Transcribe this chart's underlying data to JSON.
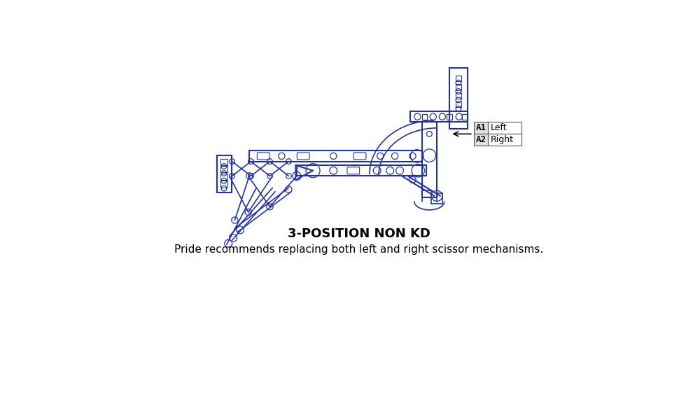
{
  "title": "3-POSITION NON KD",
  "subtitle": "Pride recommends replacing both left and right scissor mechanisms.",
  "draw_color": "#2233aa",
  "bg_color": "#ffffff",
  "arrow_color": "#000000",
  "table_data": [
    [
      "A1",
      "Left"
    ],
    [
      "A2",
      "Right"
    ]
  ],
  "title_fontsize": 13,
  "subtitle_fontsize": 11,
  "figsize": [
    10.0,
    6.0
  ],
  "dpi": 100
}
